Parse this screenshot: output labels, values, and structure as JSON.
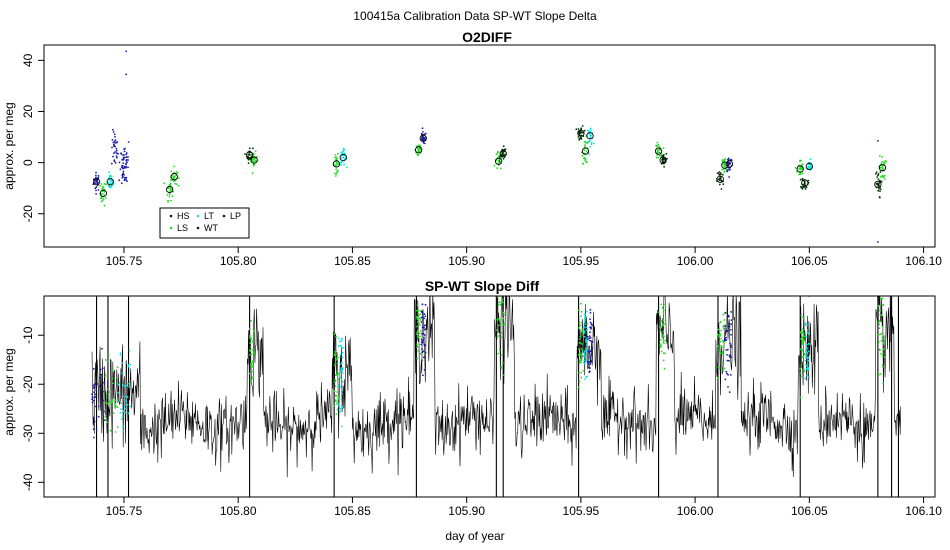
{
  "suptitle": "100415a   Calibration Data SP-WT Slope Delta",
  "chart_data": [
    {
      "type": "scatter",
      "title": "O2DIFF",
      "xlabel": "",
      "ylabel": "approx. per meg",
      "xlim": [
        105.715,
        106.105
      ],
      "ylim": [
        -33,
        46
      ],
      "xticks": [
        105.75,
        105.8,
        105.85,
        105.9,
        105.95,
        106.0,
        106.05,
        106.1
      ],
      "xtick_labels": [
        "105.75",
        "105.80",
        "105.85",
        "105.90",
        "105.95",
        "106.00",
        "106.05",
        "106.10"
      ],
      "yticks": [
        40,
        20,
        0,
        -20
      ],
      "ytick_labels": [
        "40",
        "20",
        "0",
        "-20"
      ],
      "legend": {
        "placement": "bottom-left",
        "entries": [
          {
            "label": "HS",
            "color": "#1a1a1a"
          },
          {
            "label": "LS",
            "color": "#22dd22"
          },
          {
            "label": "LT",
            "color": "#22dddd"
          },
          {
            "label": "WT",
            "color": "#1a1a1a"
          },
          {
            "label": "LP",
            "color": "#1a1a1a"
          }
        ]
      },
      "series_colors": {
        "HS": "#003300",
        "LS": "#22dd22",
        "LT": "#00e5e5",
        "WT": "#222222",
        "LP": "#1a1aaa"
      },
      "clusters": [
        {
          "x": 105.738,
          "y": -7.5,
          "color": "#1a1aaa",
          "spread": 3.0
        },
        {
          "x": 105.741,
          "y": -12,
          "color": "#22dd22",
          "spread": 4.0
        },
        {
          "x": 105.744,
          "y": -7.5,
          "color": "#00e5e5",
          "spread": 2.5
        },
        {
          "x": 105.746,
          "y": 5,
          "color": "#1a1aaa",
          "spread": 6.0
        },
        {
          "x": 105.749,
          "y": -1,
          "color": "#1a1aaa",
          "spread": 7.0
        },
        {
          "x": 105.751,
          "y": 0,
          "color": "#1a1aaa",
          "spread": 9.0
        },
        {
          "x": 105.77,
          "y": -10.5,
          "color": "#22dd22",
          "spread": 3.5
        },
        {
          "x": 105.772,
          "y": -5.5,
          "color": "#22dd22",
          "spread": 3.0
        },
        {
          "x": 105.805,
          "y": 3,
          "color": "#003300",
          "spread": 2.5
        },
        {
          "x": 105.807,
          "y": 1,
          "color": "#22dd22",
          "spread": 2.5
        },
        {
          "x": 105.843,
          "y": -0.5,
          "color": "#22dd22",
          "spread": 3.0
        },
        {
          "x": 105.846,
          "y": 2,
          "color": "#00e5e5",
          "spread": 2.5
        },
        {
          "x": 105.879,
          "y": 5,
          "color": "#22dd22",
          "spread": 3.0
        },
        {
          "x": 105.881,
          "y": 9.5,
          "color": "#1a1aaa",
          "spread": 2.0
        },
        {
          "x": 105.914,
          "y": 0.5,
          "color": "#22dd22",
          "spread": 3.0
        },
        {
          "x": 105.916,
          "y": 3.5,
          "color": "#003300",
          "spread": 2.0
        },
        {
          "x": 105.95,
          "y": 11.5,
          "color": "#003300",
          "spread": 2.5
        },
        {
          "x": 105.952,
          "y": 4.5,
          "color": "#22dd22",
          "spread": 4.0
        },
        {
          "x": 105.954,
          "y": 10.5,
          "color": "#00e5e5",
          "spread": 3.0
        },
        {
          "x": 105.984,
          "y": 4.5,
          "color": "#22dd22",
          "spread": 2.5
        },
        {
          "x": 105.986,
          "y": 1,
          "color": "#003300",
          "spread": 2.0
        },
        {
          "x": 106.011,
          "y": -6.5,
          "color": "#003300",
          "spread": 3.5
        },
        {
          "x": 106.013,
          "y": -1,
          "color": "#22dd22",
          "spread": 3.0
        },
        {
          "x": 106.015,
          "y": -0.5,
          "color": "#1a1aaa",
          "spread": 3.0
        },
        {
          "x": 106.046,
          "y": -2.5,
          "color": "#22dd22",
          "spread": 3.0
        },
        {
          "x": 106.048,
          "y": -8,
          "color": "#003300",
          "spread": 2.0
        },
        {
          "x": 106.05,
          "y": -1.5,
          "color": "#00e5e5",
          "spread": 2.0
        },
        {
          "x": 106.08,
          "y": -8.5,
          "color": "#003300",
          "spread": 4.5
        },
        {
          "x": 106.082,
          "y": -2,
          "color": "#22dd22",
          "spread": 4.0
        }
      ],
      "means": [
        [
          105.738,
          -7.5
        ],
        [
          105.741,
          -12
        ],
        [
          105.744,
          -7.5
        ],
        [
          105.77,
          -10.5
        ],
        [
          105.772,
          -5.5
        ],
        [
          105.805,
          3
        ],
        [
          105.807,
          1
        ],
        [
          105.843,
          -0.5
        ],
        [
          105.846,
          2
        ],
        [
          105.879,
          5
        ],
        [
          105.881,
          9.5
        ],
        [
          105.914,
          0.5
        ],
        [
          105.916,
          3.5
        ],
        [
          105.95,
          11.5
        ],
        [
          105.952,
          4.5
        ],
        [
          105.954,
          10.5
        ],
        [
          105.984,
          4.5
        ],
        [
          105.986,
          1
        ],
        [
          106.011,
          -6.5
        ],
        [
          106.013,
          -1
        ],
        [
          106.015,
          -0.5
        ],
        [
          106.046,
          -2.5
        ],
        [
          106.048,
          -8
        ],
        [
          106.05,
          -1.5
        ],
        [
          106.08,
          -8.5
        ],
        [
          106.082,
          -2
        ]
      ],
      "outliers": [
        [
          105.751,
          43.5
        ],
        [
          105.751,
          34.5
        ],
        [
          106.08,
          -31
        ],
        [
          106.08,
          8.5
        ]
      ]
    },
    {
      "type": "line",
      "title": "SP-WT Slope Diff",
      "xlabel": "day of year",
      "ylabel": "approx. per meg",
      "xlim": [
        105.715,
        106.105
      ],
      "ylim": [
        -43,
        -2
      ],
      "xticks": [
        105.75,
        105.8,
        105.85,
        105.9,
        105.95,
        106.0,
        106.05,
        106.1
      ],
      "xtick_labels": [
        "105.75",
        "105.80",
        "105.85",
        "105.90",
        "105.95",
        "106.00",
        "106.05",
        "106.10"
      ],
      "yticks": [
        -10,
        -20,
        -30,
        -40
      ],
      "ytick_labels": [
        "-10",
        "-20",
        "-30",
        "-40"
      ],
      "baseline_level": -28,
      "line_color": "#000000",
      "calibration_windows": [
        {
          "x0": 105.736,
          "x1": 105.753,
          "level": -22,
          "colors": [
            "#1a1aaa",
            "#22dd22",
            "#00e5e5"
          ]
        },
        {
          "x0": 105.805,
          "x1": 105.807,
          "level": -13,
          "colors": [
            "#22dd22"
          ]
        },
        {
          "x0": 105.842,
          "x1": 105.846,
          "level": -18,
          "colors": [
            "#22dd22",
            "#00e5e5"
          ]
        },
        {
          "x0": 105.878,
          "x1": 105.882,
          "level": -9,
          "colors": [
            "#22dd22",
            "#1a1aaa"
          ]
        },
        {
          "x0": 105.913,
          "x1": 105.917,
          "level": -8,
          "colors": [
            "#22dd22"
          ]
        },
        {
          "x0": 105.949,
          "x1": 105.955,
          "level": -12,
          "colors": [
            "#22dd22",
            "#00e5e5",
            "#1a1aaa"
          ]
        },
        {
          "x0": 105.984,
          "x1": 105.987,
          "level": -10,
          "colors": [
            "#22dd22"
          ]
        },
        {
          "x0": 106.01,
          "x1": 106.016,
          "level": -11,
          "colors": [
            "#22dd22",
            "#1a1aaa"
          ]
        },
        {
          "x0": 106.046,
          "x1": 106.05,
          "level": -13,
          "colors": [
            "#22dd22",
            "#00e5e5"
          ]
        },
        {
          "x0": 106.08,
          "x1": 106.083,
          "level": -10,
          "colors": [
            "#22dd22"
          ]
        }
      ],
      "spikes": [
        105.738,
        105.743,
        105.752,
        105.805,
        105.842,
        105.878,
        105.913,
        105.916,
        105.949,
        105.984,
        106.01,
        106.046,
        106.08,
        106.086,
        106.089
      ]
    }
  ]
}
